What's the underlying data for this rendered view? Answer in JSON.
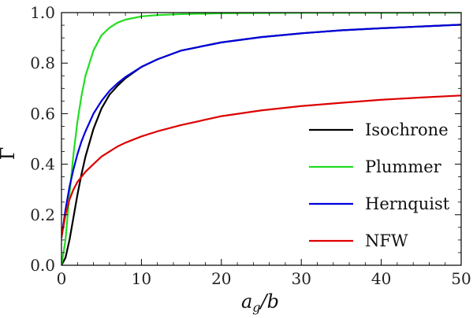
{
  "chart_data": {
    "type": "line",
    "title": "",
    "xlabel": "a_g/b",
    "xlabel_main": "a",
    "xlabel_sub": "g",
    "xlabel_tail": "/b",
    "ylabel": "Γ",
    "xlim": [
      0,
      50
    ],
    "ylim": [
      0,
      1
    ],
    "x_ticks": [
      0,
      10,
      20,
      30,
      40,
      50
    ],
    "x_tick_labels": [
      "0",
      "10",
      "20",
      "30",
      "40",
      "50"
    ],
    "y_ticks": [
      0,
      0.2,
      0.4,
      0.6,
      0.8,
      1.0
    ],
    "y_tick_labels": [
      "0.0",
      "0.2",
      "0.4",
      "0.6",
      "0.8",
      "1.0"
    ],
    "grid": false,
    "legend_position": "right",
    "series": [
      {
        "name": "Isochrone",
        "color": "#000000",
        "x": [
          0,
          0.5,
          1,
          1.5,
          2,
          2.5,
          3,
          4,
          5,
          6,
          7,
          8,
          10,
          12,
          15,
          20,
          25,
          30,
          35,
          40,
          45,
          50
        ],
        "y": [
          0.0,
          0.03,
          0.1,
          0.19,
          0.28,
          0.36,
          0.43,
          0.54,
          0.62,
          0.675,
          0.71,
          0.74,
          0.785,
          0.815,
          0.85,
          0.882,
          0.903,
          0.918,
          0.93,
          0.938,
          0.945,
          0.952
        ]
      },
      {
        "name": "Plummer",
        "color": "#22dd22",
        "x": [
          0,
          0.5,
          1,
          1.5,
          2,
          2.5,
          3,
          4,
          5,
          6,
          7,
          8,
          10,
          12,
          15,
          20,
          30,
          40,
          50
        ],
        "y": [
          0.0,
          0.1,
          0.28,
          0.44,
          0.57,
          0.67,
          0.75,
          0.85,
          0.91,
          0.94,
          0.96,
          0.972,
          0.985,
          0.99,
          0.994,
          0.997,
          0.999,
          0.999,
          1.0
        ]
      },
      {
        "name": "Hernquist",
        "color": "#0000dd",
        "x": [
          0,
          0.5,
          1,
          1.5,
          2,
          2.5,
          3,
          4,
          5,
          6,
          7,
          8,
          10,
          12,
          15,
          20,
          25,
          30,
          35,
          40,
          45,
          50
        ],
        "y": [
          0.11,
          0.22,
          0.31,
          0.38,
          0.44,
          0.49,
          0.53,
          0.6,
          0.65,
          0.69,
          0.72,
          0.745,
          0.785,
          0.815,
          0.85,
          0.882,
          0.903,
          0.918,
          0.93,
          0.938,
          0.945,
          0.952
        ]
      },
      {
        "name": "NFW",
        "color": "#dd0000",
        "x": [
          0,
          0.5,
          1,
          1.5,
          2,
          2.5,
          3,
          4,
          5,
          6,
          7,
          8,
          10,
          12,
          15,
          20,
          25,
          30,
          35,
          40,
          45,
          50
        ],
        "y": [
          0.11,
          0.2,
          0.26,
          0.3,
          0.33,
          0.35,
          0.37,
          0.4,
          0.43,
          0.45,
          0.47,
          0.485,
          0.51,
          0.53,
          0.555,
          0.59,
          0.613,
          0.63,
          0.643,
          0.655,
          0.664,
          0.672
        ]
      }
    ]
  }
}
